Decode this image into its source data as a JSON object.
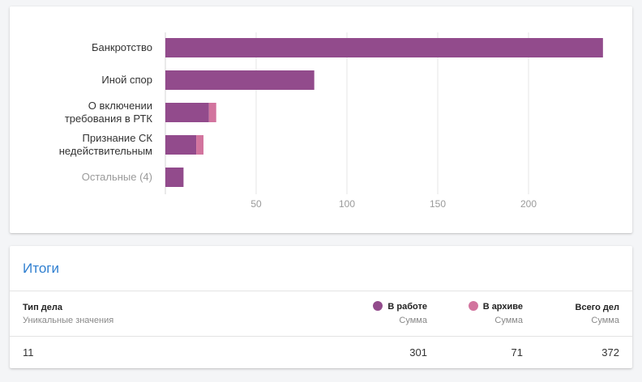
{
  "chart_data": {
    "type": "bar",
    "orientation": "horizontal",
    "stacked": true,
    "categories": [
      [
        "Банкротство"
      ],
      [
        "Иной спор"
      ],
      [
        "О включении",
        "требования в РТК"
      ],
      [
        "Признание СК",
        "недействительным"
      ],
      [
        "Остальные (4)"
      ]
    ],
    "series": [
      {
        "name": "В работе",
        "color": "#924b8c",
        "values": [
          241,
          82,
          24,
          17,
          10
        ]
      },
      {
        "name": "В архиве",
        "color": "#d2749e",
        "values": [
          0,
          0,
          4,
          4,
          0
        ]
      }
    ],
    "xticks": [
      50,
      100,
      150,
      200
    ],
    "xlim": [
      0,
      250
    ],
    "grid": true,
    "legend": "none"
  },
  "summary": {
    "title": "Итоги",
    "columns": {
      "type": {
        "label": "Тип дела",
        "sub": "Уникальные значения"
      },
      "in_work": {
        "label": "В работе",
        "sub": "Сумма",
        "color": "#924b8c"
      },
      "archive": {
        "label": "В архиве",
        "sub": "Сумма",
        "color": "#d2749e"
      },
      "total": {
        "label": "Всего дел",
        "sub": "Сумма"
      }
    },
    "row": {
      "type": "11",
      "in_work": "301",
      "archive": "71",
      "total": "372"
    }
  }
}
